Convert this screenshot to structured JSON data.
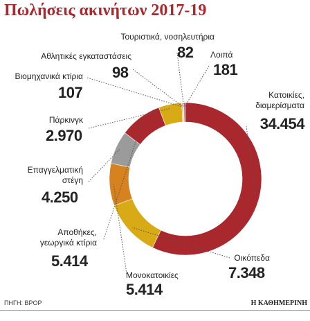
{
  "title": "Πωλήσεις ακινήτων 2017-19",
  "source": "ΠΗΓΗ: ΒΡΟΡ",
  "brand": "Η ΚΑΘΗΜΕΡΙΝΗ",
  "chart_data": {
    "type": "donut",
    "categories": [
      "Κατοικίες, διαμερίσματα",
      "Οικόπεδα",
      "Μονοκατοικίες",
      "Επαγγελματική στέγη",
      "Αποθήκες, γεωργικά κτίρια",
      "Πάρκινγκ",
      "Βιομηχανικά κτίρια",
      "Αθλητικές εγκαταστάσεις",
      "Τουριστικά, νοσηλευτήρια",
      "Λοιπά"
    ],
    "values": [
      34454,
      7348,
      5414,
      4250,
      5414,
      2970,
      107,
      98,
      82,
      181
    ],
    "value_labels": [
      "34.454",
      "7.348",
      "5.414",
      "4.250",
      "5.414",
      "2.970",
      "107",
      "98",
      "82",
      "181"
    ],
    "colors": [
      "#a9282e",
      "#d8ab16",
      "#d5821f",
      "#9b9b9b",
      "#a9282e",
      "#d8ab16",
      "#d5821f",
      "#9b9b9b",
      "#c9b48a",
      "#a9282e"
    ]
  }
}
